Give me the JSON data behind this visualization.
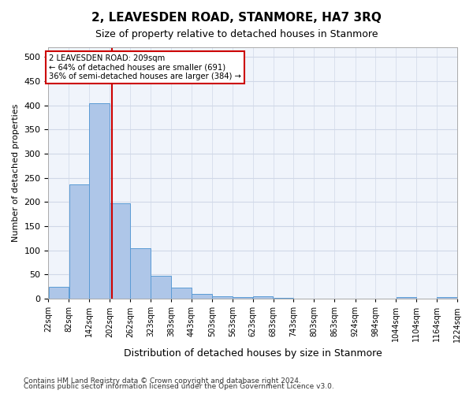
{
  "title": "2, LEAVESDEN ROAD, STANMORE, HA7 3RQ",
  "subtitle": "Size of property relative to detached houses in Stanmore",
  "xlabel": "Distribution of detached houses by size in Stanmore",
  "ylabel": "Number of detached properties",
  "footnote1": "Contains HM Land Registry data © Crown copyright and database right 2024.",
  "footnote2": "Contains public sector information licensed under the Open Government Licence v3.0.",
  "annotation_line1": "2 LEAVESDEN ROAD: 209sqm",
  "annotation_line2": "← 64% of detached houses are smaller (691)",
  "annotation_line3": "36% of semi-detached houses are larger (384) →",
  "property_size": 209,
  "bar_left_edges": [
    22,
    82,
    142,
    202,
    262,
    323,
    383,
    443,
    503,
    563,
    623,
    683,
    743,
    803,
    863,
    924,
    984,
    1044,
    1104,
    1164
  ],
  "bar_widths": [
    60,
    60,
    60,
    60,
    61,
    60,
    60,
    60,
    60,
    60,
    60,
    60,
    60,
    60,
    61,
    60,
    60,
    60,
    60,
    60
  ],
  "bar_heights": [
    25,
    237,
    405,
    197,
    105,
    48,
    23,
    10,
    5,
    4,
    5,
    2,
    1,
    1,
    0,
    0,
    0,
    4,
    0,
    4
  ],
  "tick_labels": [
    "22sqm",
    "82sqm",
    "142sqm",
    "202sqm",
    "262sqm",
    "323sqm",
    "383sqm",
    "443sqm",
    "503sqm",
    "563sqm",
    "623sqm",
    "683sqm",
    "743sqm",
    "803sqm",
    "863sqm",
    "924sqm",
    "984sqm",
    "1044sqm",
    "1104sqm",
    "1164sqm",
    "1224sqm"
  ],
  "bar_color": "#aec6e8",
  "bar_edge_color": "#5b9bd5",
  "vline_color": "#cc0000",
  "annotation_box_color": "#cc0000",
  "grid_color": "#d0d8e8",
  "background_color": "#f0f4fb",
  "ylim": [
    0,
    520
  ],
  "yticks": [
    0,
    50,
    100,
    150,
    200,
    250,
    300,
    350,
    400,
    450,
    500
  ]
}
